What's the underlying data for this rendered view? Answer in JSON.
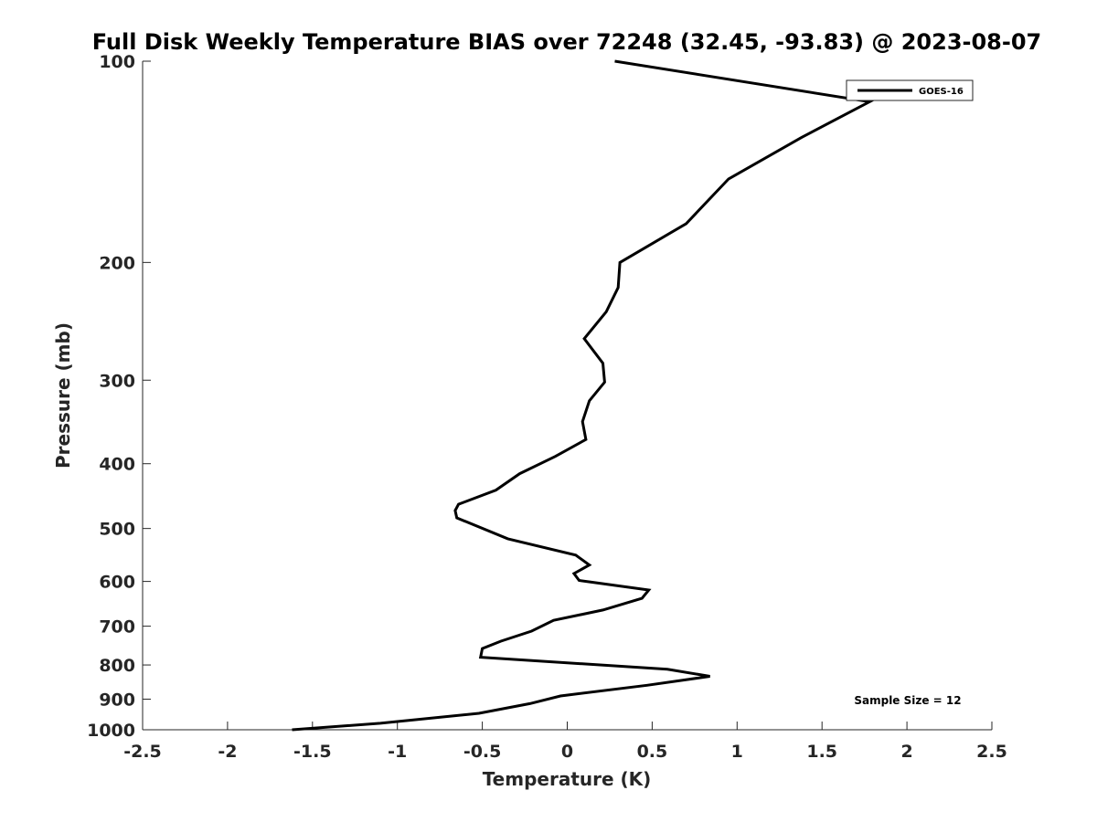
{
  "chart_data": {
    "type": "line",
    "title": "Full Disk Weekly Temperature BIAS over 72248 (32.45, -93.83) @ 2023-08-07",
    "xlabel": "Temperature (K)",
    "ylabel": "Pressure (mb)",
    "xlim": [
      -2.5,
      2.5
    ],
    "ylim": [
      100,
      1000
    ],
    "y_scale": "log",
    "y_reversed": true,
    "grid": false,
    "x_ticks": [
      -2.5,
      -2,
      -1.5,
      -1,
      -0.5,
      0,
      0.5,
      1,
      1.5,
      2,
      2.5
    ],
    "x_tick_labels": [
      "-2.5",
      "-2",
      "-1.5",
      "-1",
      "-0.5",
      "0",
      "0.5",
      "1",
      "1.5",
      "2",
      "2.5"
    ],
    "y_ticks": [
      100,
      200,
      300,
      400,
      500,
      600,
      700,
      800,
      900,
      1000
    ],
    "y_tick_labels": [
      "100",
      "200",
      "300",
      "400",
      "500",
      "600",
      "700",
      "800",
      "900",
      "1000"
    ],
    "legend_position": "top-right",
    "series": [
      {
        "name": "GOES-16",
        "color": "#000000",
        "x": [
          0.28,
          1.78,
          1.38,
          0.95,
          0.7,
          0.31,
          0.3,
          0.23,
          0.1,
          0.21,
          0.22,
          0.13,
          0.09,
          0.11,
          -0.07,
          -0.28,
          -0.42,
          -0.64,
          -0.66,
          -0.65,
          -0.35,
          0.05,
          0.13,
          0.04,
          0.07,
          0.48,
          0.44,
          0.21,
          -0.08,
          -0.21,
          -0.39,
          -0.5,
          -0.51,
          0.59,
          0.84,
          0.47,
          -0.04,
          -0.22,
          -0.52,
          -1.1,
          -1.62
        ],
        "y": [
          100,
          115,
          130,
          150,
          175,
          200,
          218,
          237,
          260,
          283,
          302,
          322,
          346,
          368,
          390,
          414,
          438,
          460,
          470,
          482,
          518,
          548,
          567,
          584,
          598,
          618,
          636,
          662,
          686,
          712,
          737,
          756,
          779,
          812,
          832,
          858,
          890,
          914,
          945,
          978,
          1000
        ]
      }
    ],
    "annotation": "Sample Size = 12"
  }
}
